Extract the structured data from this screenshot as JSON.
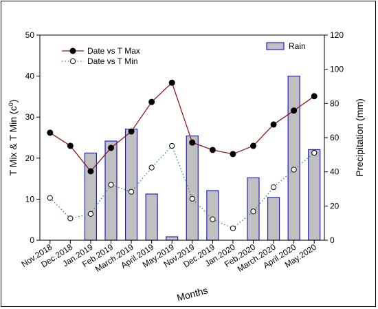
{
  "chart_data": {
    "type": "bar+line",
    "categories": [
      "Nov.2018",
      "Dec.2018",
      "Jan.2019",
      "Feb.2019",
      "March.2019",
      "April.2019",
      "May.2019",
      "Nov.2019",
      "Dec.2019",
      "Jan.2020",
      "Feb.2020",
      "March.2020",
      "April.2020",
      "May.2020"
    ],
    "xlabel": "Months",
    "ylabel_left": "T Mix & T Min (c",
    "ylabel_left_sup": "0",
    "ylabel_left_close": ")",
    "ylabel_right": "Precipitation (mm)",
    "ylim_left": [
      0,
      50
    ],
    "yticks_left": [
      0,
      10,
      20,
      30,
      40,
      50
    ],
    "ylim_right": [
      0,
      120
    ],
    "yticks_right": [
      0,
      20,
      40,
      60,
      80,
      100,
      120
    ],
    "grid": false,
    "legend_placement": "top-left and top-right",
    "series": [
      {
        "name": "Date vs T Max",
        "type": "line",
        "axis": "left",
        "color": "#8b1a1a",
        "marker": "filled-circle",
        "values": [
          26.2,
          23.0,
          16.8,
          22.5,
          26.5,
          33.7,
          38.4,
          23.8,
          22.0,
          21.0,
          23.0,
          28.2,
          31.6,
          35.1
        ]
      },
      {
        "name": "Date vs T Min",
        "type": "line",
        "axis": "left",
        "color": "#2e8b57",
        "style": "dotted",
        "marker": "open-circle",
        "values": [
          10.3,
          5.3,
          6.4,
          13.5,
          11.8,
          17.7,
          23.0,
          10.1,
          5.1,
          2.9,
          7.0,
          12.9,
          17.2,
          21.3
        ]
      },
      {
        "name": "Rain",
        "type": "bar",
        "axis": "right",
        "fill": "#c0c0c0",
        "stroke": "#1f1fcc",
        "values": [
          0,
          0,
          51,
          58,
          65,
          27,
          2,
          61,
          29,
          0,
          36.5,
          25,
          96,
          53
        ]
      }
    ]
  }
}
